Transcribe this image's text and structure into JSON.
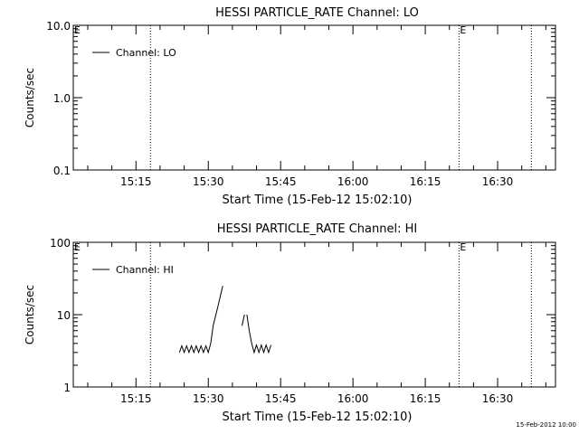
{
  "footer_date": "15-Feb-2012 10:00",
  "chart_data": [
    {
      "type": "line",
      "title": "HESSI PARTICLE_RATE Channel: LO",
      "xlabel": "Start Time (15-Feb-12 15:02:10)",
      "ylabel": "Counts/sec",
      "yscale": "log",
      "ylim": [
        0.1,
        10.0
      ],
      "xlim": [
        "15:02",
        "16:42"
      ],
      "xticks": [
        "15:15",
        "15:30",
        "15:45",
        "16:00",
        "16:15",
        "16:30"
      ],
      "yticks": [
        "0.1",
        "1.0",
        "10.0"
      ],
      "legend": {
        "label": "Channel: LO",
        "placement": "top-left"
      },
      "markers": [
        {
          "time": "15:18",
          "label": ""
        },
        {
          "time": "16:22",
          "label": "E"
        },
        {
          "time": "16:37",
          "label": ""
        }
      ],
      "corner_label": "E",
      "series": [
        {
          "name": "Channel: LO",
          "segments": []
        }
      ]
    },
    {
      "type": "line",
      "title": "HESSI PARTICLE_RATE Channel: HI",
      "xlabel": "Start Time (15-Feb-12 15:02:10)",
      "ylabel": "Counts/sec",
      "yscale": "log",
      "ylim": [
        1,
        100
      ],
      "xlim": [
        "15:02",
        "16:42"
      ],
      "xticks": [
        "15:15",
        "15:30",
        "15:45",
        "16:00",
        "16:15",
        "16:30"
      ],
      "yticks": [
        "1",
        "10",
        "100"
      ],
      "legend": {
        "label": "Channel: HI",
        "placement": "top-left"
      },
      "markers": [
        {
          "time": "15:18",
          "label": ""
        },
        {
          "time": "16:22",
          "label": "E"
        },
        {
          "time": "16:37",
          "label": ""
        }
      ],
      "corner_label": "E",
      "series": [
        {
          "name": "Channel: HI",
          "segments": [
            [
              [
                "15:24",
                3.0
              ],
              [
                "15:24.5",
                3.7
              ],
              [
                "15:25",
                3.0
              ],
              [
                "15:25.5",
                3.7
              ],
              [
                "15:26",
                3.0
              ],
              [
                "15:26.5",
                3.7
              ],
              [
                "15:27",
                3.0
              ],
              [
                "15:27.5",
                3.7
              ],
              [
                "15:28",
                3.0
              ],
              [
                "15:28.5",
                3.7
              ],
              [
                "15:29",
                3.0
              ],
              [
                "15:29.5",
                3.7
              ],
              [
                "15:30",
                3.0
              ],
              [
                "15:30.5",
                4.0
              ],
              [
                "15:31",
                7.0
              ],
              [
                "15:32",
                13.0
              ],
              [
                "15:33",
                25.0
              ]
            ],
            [
              [
                "15:37",
                7.0
              ],
              [
                "15:37.5",
                10.0
              ]
            ],
            [
              [
                "15:38",
                10.0
              ],
              [
                "15:38.5",
                6.0
              ],
              [
                "15:39",
                4.0
              ],
              [
                "15:39.5",
                3.0
              ],
              [
                "15:40",
                3.8
              ],
              [
                "15:40.5",
                3.0
              ],
              [
                "15:41",
                3.8
              ],
              [
                "15:41.5",
                3.0
              ],
              [
                "15:42",
                3.8
              ],
              [
                "15:42.5",
                3.0
              ],
              [
                "15:43",
                3.8
              ]
            ]
          ]
        }
      ]
    }
  ]
}
